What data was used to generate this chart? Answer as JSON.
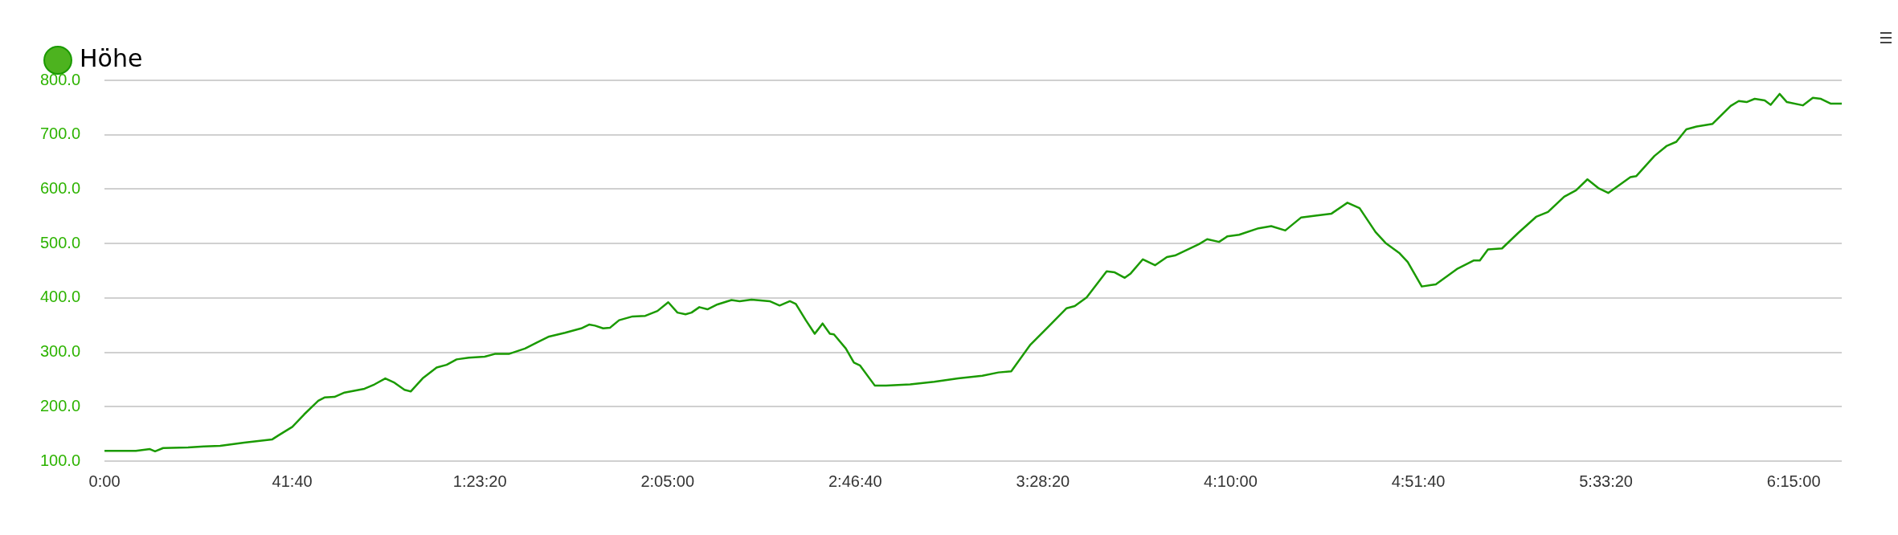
{
  "chart_data": {
    "type": "line",
    "x": [
      0,
      6.96,
      10.08,
      11.22,
      13.02,
      18.54,
      22.08,
      25.68,
      31.02,
      37.26,
      38.58,
      41.7,
      44.34,
      47.46,
      48.84,
      51.06,
      53.28,
      57.72,
      59.94,
      62.34,
      64.38,
      66.6,
      67.98,
      70.62,
      73.74,
      75.96,
      78.18,
      80.88,
      84.42,
      86.64,
      89.76,
      93.36,
      96,
      98.7,
      102.24,
      105.84,
      107.58,
      108.9,
      110.7,
      112.2,
      114.24,
      117.24,
      120.06,
      122.76,
      125.16,
      127.2,
      129,
      130.32,
      132.06,
      133.86,
      136.08,
      139.2,
      141,
      143.64,
      147.66,
      149.88,
      152.16,
      153.48,
      155.7,
      157.68,
      159.42,
      161.04,
      161.94,
      164.58,
      166.38,
      167.7,
      171,
      173.52,
      178.86,
      184.2,
      189.54,
      194.88,
      198.48,
      201.3,
      205.56,
      209.16,
      213.6,
      215.4,
      218.04,
      222.48,
      224.28,
      226.5,
      227.82,
      230.52,
      233.22,
      235.86,
      237.66,
      243,
      244.8,
      247.44,
      249.24,
      251.88,
      256.2,
      259.02,
      262.14,
      265.68,
      268.8,
      272.4,
      275.94,
      278.64,
      282.18,
      284.4,
      287.52,
      289.32,
      292.44,
      295.56,
      300.42,
      304.02,
      305.34,
      307.14,
      310.26,
      313.8,
      317.82,
      320.46,
      324.06,
      326.7,
      329.22,
      331.62,
      333.84,
      338.76,
      340.08,
      344.1,
      346.74,
      348.96,
      351.18,
      353.46,
      357,
      361.02,
      362.82,
      364.56,
      366.36,
      368.58,
      369.9,
      371.88,
      373.5,
      377.04,
      379.26,
      381.06,
      383.28,
      385.68
    ],
    "series": [
      {
        "name": "Höhe",
        "color": "#1a9a00",
        "values": [
          119,
          119,
          122,
          118,
          124,
          125,
          127,
          128,
          134,
          140,
          147,
          163,
          186,
          211,
          217,
          218,
          226,
          233,
          241,
          252,
          244,
          231,
          228,
          252,
          272,
          277,
          287,
          290,
          292,
          297,
          297,
          307,
          318,
          329,
          336,
          344,
          351,
          349,
          344,
          345,
          359,
          366,
          367,
          376,
          392,
          373,
          370,
          373,
          383,
          379,
          388,
          396,
          394,
          397,
          394,
          386,
          394,
          389,
          359,
          334,
          353,
          334,
          333,
          307,
          281,
          276,
          239,
          239,
          241,
          246,
          252,
          257,
          263,
          265,
          314,
          344,
          381,
          385,
          401,
          449,
          447,
          437,
          445,
          471,
          460,
          475,
          478,
          499,
          508,
          503,
          513,
          516,
          528,
          532,
          524,
          548,
          551,
          555,
          575,
          565,
          521,
          501,
          482,
          466,
          421,
          425,
          454,
          469,
          469,
          489,
          491,
          519,
          549,
          558,
          586,
          598,
          618,
          602,
          593,
          622,
          624,
          661,
          679,
          687,
          710,
          715,
          720,
          753,
          762,
          760,
          766,
          763,
          755,
          775,
          760,
          754,
          768,
          766,
          757,
          757
        ]
      }
    ],
    "xlim": [
      0,
      385.68
    ],
    "xticks": [
      {
        "value": 0,
        "label": "0:00"
      },
      {
        "value": 41.667,
        "label": "41:40"
      },
      {
        "value": 83.333,
        "label": "1:23:20"
      },
      {
        "value": 125,
        "label": "2:05:00"
      },
      {
        "value": 166.667,
        "label": "2:46:40"
      },
      {
        "value": 208.333,
        "label": "3:28:20"
      },
      {
        "value": 250,
        "label": "4:10:00"
      },
      {
        "value": 291.667,
        "label": "4:51:40"
      },
      {
        "value": 333.333,
        "label": "5:33:20"
      },
      {
        "value": 375,
        "label": "6:15:00"
      }
    ],
    "ylim": [
      100,
      800
    ],
    "yticks": [
      {
        "value": 100,
        "label": "100.0"
      },
      {
        "value": 200,
        "label": "200.0"
      },
      {
        "value": 300,
        "label": "300.0"
      },
      {
        "value": 400,
        "label": "400.0"
      },
      {
        "value": 500,
        "label": "500.0"
      },
      {
        "value": 600,
        "label": "600.0"
      },
      {
        "value": 700,
        "label": "700.0"
      },
      {
        "value": 800,
        "label": "800.0"
      }
    ],
    "grid": "y",
    "legend": "top left",
    "marker": "none",
    "line_style": "solid"
  }
}
